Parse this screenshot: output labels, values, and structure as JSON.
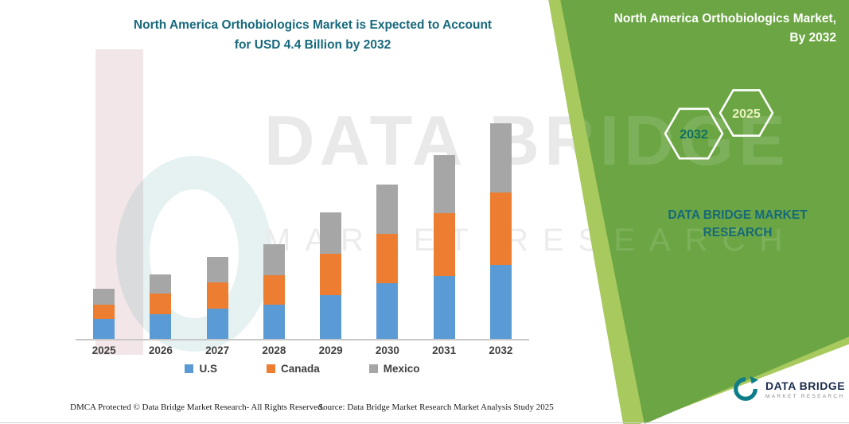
{
  "header": {
    "line1": "North America Orthobiologics Market is Expected to Account",
    "line2": "for USD 4.4 Billion by 2032"
  },
  "banner": {
    "title_line1": "North America Orthobiologics Market,",
    "title_line2": "By 2032",
    "hexagon_back_label": "2032",
    "hexagon_front_label": "2025",
    "brand_line1": "DATA BRIDGE MARKET",
    "brand_line2": "RESEARCH"
  },
  "watermark": {
    "line1": "DATA BRIDGE",
    "line2": "MARKET RESEARCH"
  },
  "footer": {
    "dmca": "DMCA Protected © Data Bridge Market Research- All Rights Reserved.",
    "source": "Source: Data Bridge Market Research Market Analysis Study 2025"
  },
  "logo": {
    "name": "DATA BRIDGE",
    "tagline": "MARKET RESEARCH"
  },
  "colors": {
    "band_green": "#6ca644",
    "band_light_green": "#a8c95e",
    "title_teal": "#17697c",
    "hexagon_back_text": "#0d6e62",
    "hexagon_front_text": "#e8f2c0"
  },
  "chart_data": {
    "type": "bar",
    "stacked": true,
    "title": "North America Orthobiologics Market is Expected to Account for USD 4.4 Billion by 2032",
    "unit": "USD Billion",
    "categories": [
      "2025",
      "2026",
      "2027",
      "2028",
      "2029",
      "2030",
      "2031",
      "2032"
    ],
    "series": [
      {
        "name": "U.S",
        "color": "#5b9bd5",
        "values": [
          0.4,
          0.5,
          0.61,
          0.69,
          0.89,
          1.14,
          1.29,
          1.51
        ]
      },
      {
        "name": "Canada",
        "color": "#ed7d31",
        "values": [
          0.29,
          0.42,
          0.53,
          0.6,
          0.84,
          1.0,
          1.29,
          1.47
        ]
      },
      {
        "name": "Mexico",
        "color": "#a6a6a6",
        "values": [
          0.32,
          0.39,
          0.52,
          0.64,
          0.84,
          1.0,
          1.18,
          1.42
        ]
      }
    ],
    "totals": [
      1.01,
      1.31,
      1.66,
      1.93,
      2.57,
      3.14,
      3.76,
      4.4
    ],
    "xlabel": "",
    "ylabel": "",
    "ylim": [
      0,
      5
    ],
    "grid": false,
    "legend_position": "bottom"
  }
}
